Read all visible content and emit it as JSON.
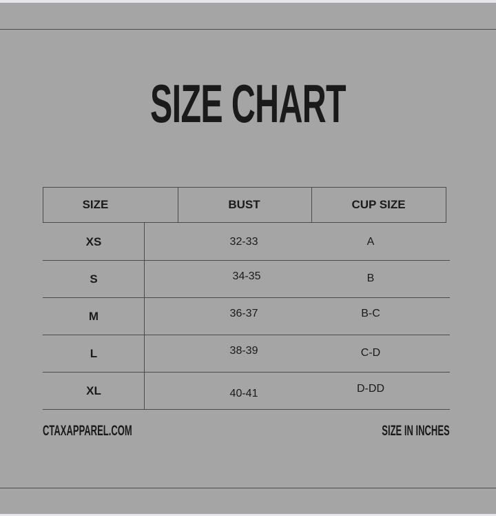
{
  "title": "SIZE CHART",
  "table": {
    "headers": [
      "SIZE",
      "BUST",
      "CUP SIZE"
    ],
    "rows": [
      {
        "size": "XS",
        "bust": "32-33",
        "cup": "A"
      },
      {
        "size": "S",
        "bust": "34-35",
        "cup": "B"
      },
      {
        "size": "M",
        "bust": "36-37",
        "cup": "B-C"
      },
      {
        "size": "L",
        "bust": "38-39",
        "cup": "C-D"
      },
      {
        "size": "XL",
        "bust": "40-41",
        "cup": "D-DD"
      }
    ]
  },
  "footer": {
    "website": "CTAXAPPAREL.COM",
    "units_note": "SIZE IN INCHES"
  },
  "colors": {
    "background": "#a5a5a5",
    "text": "#1a1a1a",
    "lines": "#4a4a4a"
  }
}
